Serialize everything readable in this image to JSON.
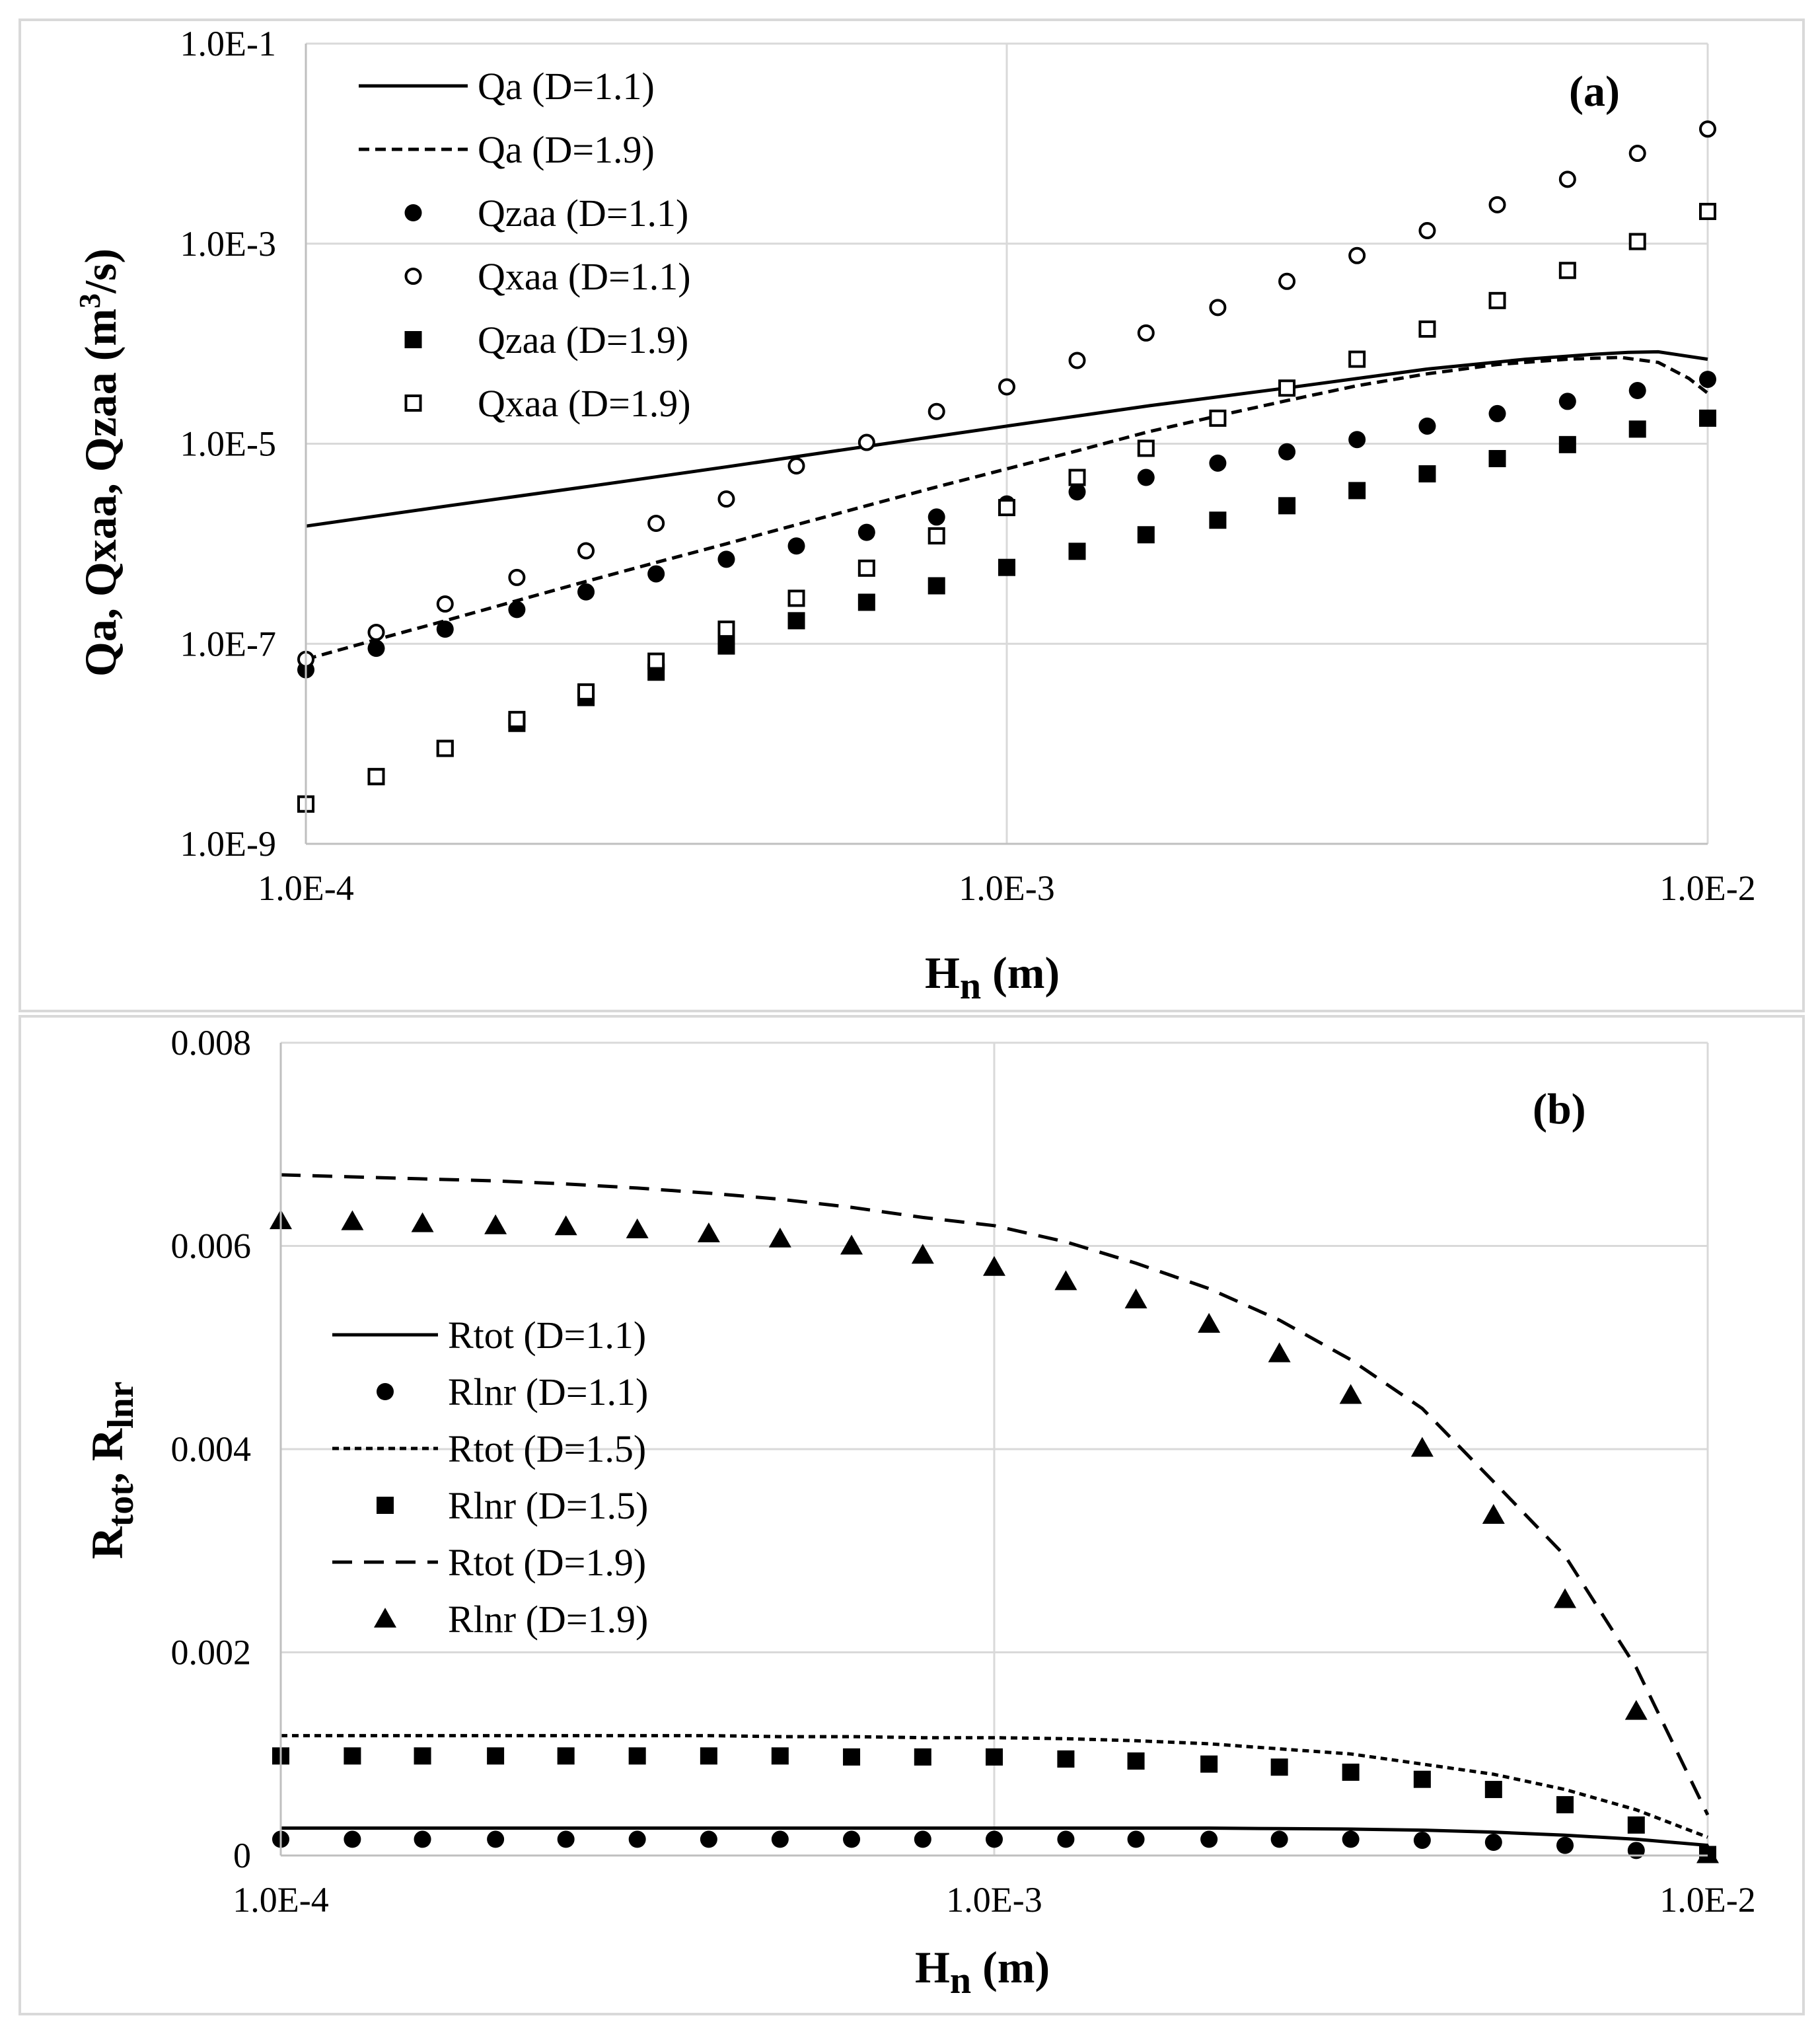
{
  "chart_data": [
    {
      "type": "scatter",
      "panel": "(a)",
      "xscale": "log",
      "yscale": "log",
      "xlim": [
        0.0001,
        0.01
      ],
      "ylim": [
        1e-09,
        0.1
      ],
      "xticks": [
        0.0001,
        0.001,
        0.01
      ],
      "xtick_labels": [
        "1.0E-4",
        "1.0E-3",
        "1.0E-2"
      ],
      "yticks": [
        0.1,
        0.001,
        1e-05,
        1e-07,
        1e-09
      ],
      "ytick_labels": [
        "1.0E-1",
        "1.0E-3",
        "1.0E-5",
        "1.0E-7",
        "1.0E-9"
      ],
      "xlabel_main": "H",
      "xlabel_sub": "n",
      "xlabel_unit": " (m)",
      "ylabel_text": "Qa, Qxaa, Qzaa (m",
      "ylabel_sup": "3",
      "ylabel_end": "/s)",
      "grid": true,
      "legend_position": "top-left",
      "x": [
        0.0001,
        0.000126,
        0.000158,
        0.0002,
        0.000251,
        0.000316,
        0.000398,
        0.000501,
        0.000631,
        0.000794,
        0.001,
        0.00126,
        0.00158,
        0.002,
        0.00251,
        0.00316,
        0.00398,
        0.00501,
        0.00631,
        0.00794,
        0.01
      ],
      "series": [
        {
          "name": "Qa (D=1.1)",
          "style": "solid-line",
          "x": [
            0.0001,
            0.00016,
            0.00025,
            0.0004,
            0.00063,
            0.001,
            0.0016,
            0.0025,
            0.004,
            0.0055,
            0.0068,
            0.0077,
            0.0085,
            0.01
          ],
          "values": [
            1.5e-06,
            2.4e-06,
            3.7e-06,
            5.9e-06,
            9.4e-06,
            1.5e-05,
            2.4e-05,
            3.6e-05,
            5.6e-05,
            7e-05,
            7.8e-05,
            8.2e-05,
            8.3e-05,
            7e-05
          ]
        },
        {
          "name": "Qa (D=1.9)",
          "style": "dashed-line",
          "x": [
            0.0001,
            0.000126,
            0.000158,
            0.0002,
            0.000251,
            0.000316,
            0.000398,
            0.000501,
            0.000631,
            0.000794,
            0.001,
            0.00126,
            0.00158,
            0.002,
            0.00251,
            0.00316,
            0.00398,
            0.00501,
            0.00631,
            0.0075,
            0.0085,
            0.0094,
            0.01
          ],
          "values": [
            7e-08,
            1.1e-07,
            1.7e-07,
            2.7e-07,
            4.2e-07,
            6.5e-07,
            1e-06,
            1.55e-06,
            2.4e-06,
            3.7e-06,
            5.6e-06,
            8.5e-06,
            1.3e-05,
            1.9e-05,
            2.7e-05,
            3.8e-05,
            5e-05,
            6.2e-05,
            7e-05,
            7.3e-05,
            6.5e-05,
            4.5e-05,
            3.2e-05
          ]
        },
        {
          "name": "Qzaa (D=1.1)",
          "marker": "filled-circle",
          "values": [
            5.5e-08,
            9e-08,
            1.4e-07,
            2.2e-07,
            3.3e-07,
            5e-07,
            7e-07,
            9.5e-07,
            1.3e-06,
            1.85e-06,
            2.5e-06,
            3.3e-06,
            4.6e-06,
            6.4e-06,
            8.3e-06,
            1.1e-05,
            1.5e-05,
            2e-05,
            2.65e-05,
            3.4e-05,
            4.4e-05
          ]
        },
        {
          "name": "Qxaa (D=1.1)",
          "marker": "open-circle",
          "values": [
            7e-08,
            1.3e-07,
            2.5e-07,
            4.6e-07,
            8.5e-07,
            1.6e-06,
            2.8e-06,
            6e-06,
            1.03e-05,
            2.1e-05,
            3.7e-05,
            6.8e-05,
            0.000128,
            0.00023,
            0.00042,
            0.00076,
            0.00135,
            0.00245,
            0.0044,
            0.008,
            0.014
          ]
        },
        {
          "name": "Qzaa (D=1.9)",
          "marker": "filled-square",
          "values": [
            2.5e-09,
            4.7e-09,
            9e-09,
            1.6e-08,
            2.9e-08,
            5.2e-08,
            9.5e-08,
            1.7e-07,
            2.6e-07,
            3.8e-07,
            5.8e-07,
            8.4e-07,
            1.23e-06,
            1.72e-06,
            2.4e-06,
            3.4e-06,
            5e-06,
            7.1e-06,
            9.8e-06,
            1.4e-05,
            1.8e-05
          ]
        },
        {
          "name": "Qxaa (D=1.9)",
          "marker": "open-square",
          "values": [
            2.5e-09,
            4.7e-09,
            9e-09,
            1.75e-08,
            3.3e-08,
            6.7e-08,
            1.4e-07,
            2.85e-07,
            5.7e-07,
            1.2e-06,
            2.3e-06,
            4.6e-06,
            9e-06,
            1.8e-05,
            3.6e-05,
            7e-05,
            0.00014,
            0.00027,
            0.00054,
            0.00105,
            0.0021
          ]
        }
      ]
    },
    {
      "type": "scatter",
      "panel": "(b)",
      "xscale": "log",
      "yscale": "linear",
      "xlim": [
        0.0001,
        0.01
      ],
      "ylim": [
        0,
        0.008
      ],
      "xticks": [
        0.0001,
        0.001,
        0.01
      ],
      "xtick_labels": [
        "1.0E-4",
        "1.0E-3",
        "1.0E-2"
      ],
      "yticks": [
        0,
        0.002,
        0.004,
        0.006,
        0.008
      ],
      "ytick_labels": [
        "0",
        "0.002",
        "0.004",
        "0.006",
        "0.008"
      ],
      "xlabel_main": "H",
      "xlabel_sub": "n",
      "xlabel_unit": " (m)",
      "ylabel_a": "R",
      "ylabel_a_sub": "tot",
      "ylabel_sep": ", R",
      "ylabel_b_sub": "lnr",
      "grid": true,
      "legend_position": "center-left",
      "x": [
        0.0001,
        0.000126,
        0.000158,
        0.0002,
        0.000251,
        0.000316,
        0.000398,
        0.000501,
        0.000631,
        0.000794,
        0.001,
        0.00126,
        0.00158,
        0.002,
        0.00251,
        0.00316,
        0.00398,
        0.00501,
        0.00631,
        0.00794,
        0.01
      ],
      "series": [
        {
          "name": "Rtot (D=1.1)",
          "style": "solid-line",
          "values": [
            0.00027,
            0.00027,
            0.00027,
            0.00027,
            0.00027,
            0.00027,
            0.00027,
            0.00027,
            0.00027,
            0.00027,
            0.00027,
            0.00027,
            0.00027,
            0.00027,
            0.000265,
            0.00026,
            0.00025,
            0.00023,
            0.0002,
            0.00016,
            0.0001
          ]
        },
        {
          "name": "Rlnr (D=1.1)",
          "marker": "filled-circle",
          "values": [
            0.00016,
            0.00016,
            0.00016,
            0.00016,
            0.00016,
            0.00016,
            0.00016,
            0.00016,
            0.00016,
            0.00016,
            0.00016,
            0.00016,
            0.00016,
            0.00016,
            0.00016,
            0.00016,
            0.00015,
            0.00013,
            0.0001,
            5e-05,
            1e-05
          ]
        },
        {
          "name": "Rtot (D=1.5)",
          "style": "short-dash-line",
          "values": [
            0.00118,
            0.00118,
            0.00118,
            0.00118,
            0.00118,
            0.00118,
            0.00118,
            0.00117,
            0.00117,
            0.00116,
            0.00116,
            0.00115,
            0.00113,
            0.0011,
            0.00105,
            0.001,
            0.0009,
            0.0008,
            0.00065,
            0.00045,
            0.00018
          ]
        },
        {
          "name": "Rlnr (D=1.5)",
          "marker": "filled-square",
          "values": [
            0.00098,
            0.00098,
            0.00098,
            0.00098,
            0.00098,
            0.00098,
            0.00098,
            0.00098,
            0.00097,
            0.00097,
            0.00097,
            0.00095,
            0.00093,
            0.0009,
            0.00087,
            0.00082,
            0.00075,
            0.00065,
            0.0005,
            0.0003,
            1e-05
          ]
        },
        {
          "name": "Rtot (D=1.9)",
          "style": "long-dash-line",
          "values": [
            0.0067,
            0.00668,
            0.00666,
            0.00664,
            0.00661,
            0.00657,
            0.00652,
            0.00646,
            0.00638,
            0.00628,
            0.0062,
            0.00604,
            0.00583,
            0.00558,
            0.00527,
            0.00488,
            0.0044,
            0.00368,
            0.00295,
            0.00185,
            0.0004
          ]
        },
        {
          "name": "Rlnr (D=1.9)",
          "marker": "filled-triangle",
          "values": [
            0.00625,
            0.00624,
            0.00622,
            0.0062,
            0.00619,
            0.00616,
            0.00612,
            0.00607,
            0.006,
            0.00591,
            0.00579,
            0.00565,
            0.00547,
            0.00523,
            0.00494,
            0.00453,
            0.00401,
            0.00335,
            0.00252,
            0.00142,
            1e-05
          ]
        }
      ]
    }
  ]
}
